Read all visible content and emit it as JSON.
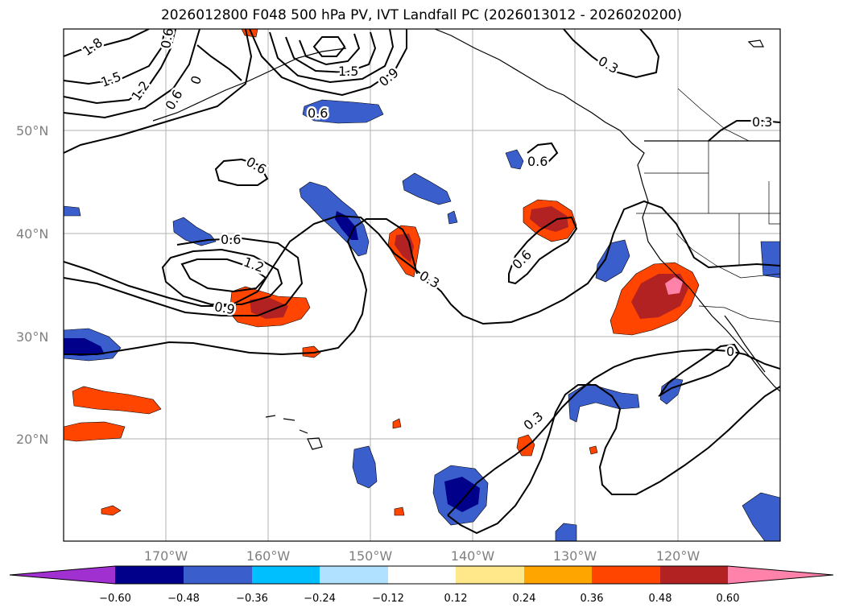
{
  "title": "2026012800 F048 500 hPa PV, IVT Landfall PC (2026013012 - 2026020200)",
  "lat_labels": [
    "50°N",
    "40°N",
    "30°N",
    "20°N"
  ],
  "lon_labels": [
    "170°W",
    "160°W",
    "150°W",
    "140°W",
    "130°W",
    "120°W"
  ],
  "contour_labels": {
    "l18": "1.8",
    "l15a": "1.5",
    "l12a": "1.2",
    "l06a": "0.6",
    "l06b": "0.6",
    "l00": "0",
    "l15b": "1.5",
    "l09a": "0.9",
    "l06c": "0.6",
    "l03a": "0.3",
    "l03b": "0.3",
    "l06d": "0.6",
    "l06e": "0.6",
    "l06f": "0.6",
    "l12b": "1.2",
    "l09b": "0.9",
    "l03c": "0.3",
    "l06g": "0.6",
    "l03d": "0.3",
    "l00b": "0"
  },
  "colorbar": {
    "ticks": [
      "−0.60",
      "−0.48",
      "−0.36",
      "−0.24",
      "−0.12",
      "0.12",
      "0.24",
      "0.36",
      "0.48",
      "0.60"
    ],
    "colors": [
      "#a030d0",
      "#00008b",
      "#3a5fcd",
      "#00bfff",
      "#b0e2ff",
      "#ffffff",
      "#ffe88a",
      "#ffa500",
      "#ff4500",
      "#b22222",
      "#ff82ab",
      "#ff82ab"
    ]
  }
}
